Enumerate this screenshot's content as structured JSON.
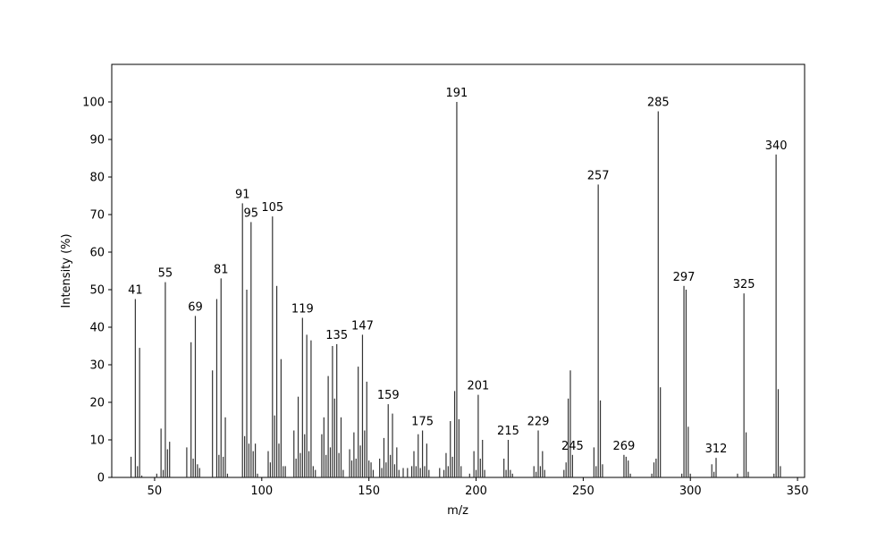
{
  "chart_data": {
    "type": "stem",
    "xlabel": "m/z",
    "ylabel": "Intensity (%)",
    "x": [
      39,
      41,
      42,
      43,
      44,
      51,
      53,
      54,
      55,
      56,
      57,
      65,
      67,
      68,
      69,
      70,
      71,
      77,
      79,
      80,
      81,
      82,
      83,
      84,
      91,
      92,
      93,
      94,
      95,
      96,
      97,
      98,
      103,
      104,
      105,
      106,
      107,
      108,
      109,
      110,
      111,
      115,
      116,
      117,
      118,
      119,
      120,
      121,
      122,
      123,
      124,
      125,
      128,
      129,
      130,
      131,
      132,
      133,
      134,
      135,
      136,
      137,
      138,
      141,
      142,
      143,
      144,
      145,
      146,
      147,
      148,
      149,
      150,
      151,
      152,
      155,
      156,
      157,
      158,
      159,
      160,
      161,
      162,
      163,
      164,
      166,
      168,
      170,
      171,
      172,
      173,
      174,
      175,
      176,
      177,
      178,
      183,
      185,
      186,
      187,
      188,
      189,
      190,
      191,
      192,
      193,
      197,
      199,
      200,
      201,
      202,
      203,
      204,
      213,
      214,
      215,
      216,
      217,
      227,
      228,
      229,
      230,
      231,
      232,
      241,
      242,
      243,
      244,
      245,
      255,
      256,
      257,
      258,
      259,
      269,
      270,
      271,
      272,
      282,
      283,
      284,
      285,
      286,
      296,
      297,
      298,
      299,
      300,
      310,
      311,
      312,
      322,
      325,
      326,
      327,
      339,
      340,
      341,
      342
    ],
    "values": [
      5.5,
      47.5,
      3,
      34.5,
      0.5,
      1,
      13,
      2,
      52,
      7.5,
      9.5,
      8,
      36,
      5,
      43,
      3.5,
      2.5,
      28.5,
      47.5,
      6,
      53,
      5.5,
      16,
      1,
      73,
      11,
      50,
      9,
      68,
      7,
      9,
      1,
      7,
      4,
      69.5,
      16.5,
      51,
      9,
      31.5,
      3,
      3,
      12.5,
      5,
      21.5,
      6.5,
      42.5,
      11.5,
      38,
      7,
      36.5,
      3,
      2,
      11.5,
      16,
      6,
      27,
      8,
      35,
      21,
      35.5,
      6.5,
      16,
      2,
      7.5,
      4.5,
      12,
      5,
      29.5,
      8.5,
      38,
      12.5,
      25.5,
      4.5,
      4,
      2,
      5,
      2.5,
      10.5,
      4,
      19.5,
      6,
      17,
      3.5,
      8,
      2,
      2.5,
      2.5,
      3,
      7,
      3,
      11.5,
      2.5,
      12.5,
      3,
      9,
      2,
      2.5,
      2,
      6.5,
      3,
      15,
      5.5,
      23,
      100,
      15.5,
      3,
      1,
      7,
      2,
      22,
      5,
      10,
      2,
      5,
      2,
      10,
      2,
      1,
      3,
      1.5,
      12.5,
      3,
      7,
      2,
      2,
      4,
      21,
      28.5,
      6,
      8,
      3,
      78,
      20.5,
      3.5,
      6,
      5.5,
      4.5,
      1,
      1,
      4,
      5,
      97.5,
      24,
      1,
      51,
      50,
      13.5,
      1,
      3.5,
      1.5,
      5.2,
      1,
      49,
      12,
      1.5,
      1,
      86,
      23.5,
      3
    ],
    "annotations": [
      41,
      55,
      69,
      81,
      91,
      95,
      105,
      119,
      135,
      147,
      159,
      175,
      191,
      201,
      215,
      229,
      245,
      257,
      269,
      285,
      297,
      312,
      325,
      340
    ],
    "color": "#333333",
    "xlim": [
      30,
      353.3
    ],
    "ylim": [
      0,
      110
    ],
    "xticks": [
      50,
      100,
      150,
      200,
      250,
      300,
      350
    ],
    "yticks": [
      0,
      10,
      20,
      30,
      40,
      50,
      60,
      70,
      80,
      90,
      100
    ]
  }
}
